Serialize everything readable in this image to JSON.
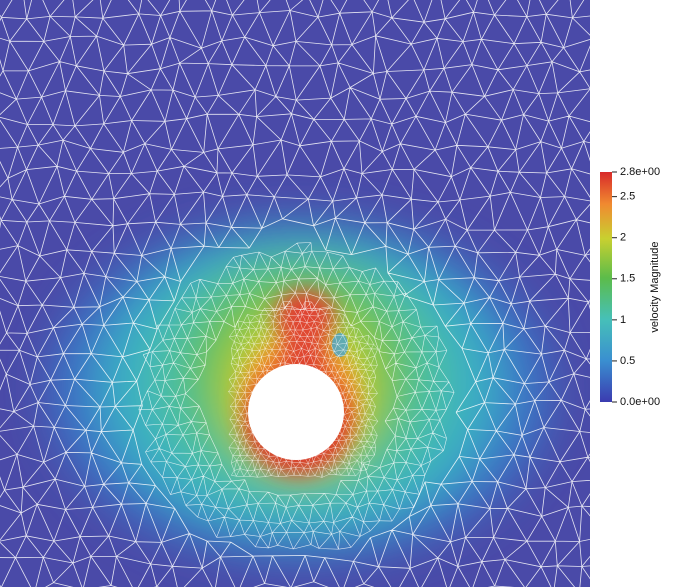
{
  "colorbar": {
    "title": "velocity Magnitude",
    "range": [
      0,
      2.8
    ],
    "ticks": [
      {
        "value": 2.8,
        "label": "2.8e+00"
      },
      2.5,
      2,
      1.5,
      1,
      0.5,
      {
        "value": 0,
        "label": "0.0e+00"
      }
    ]
  }
}
